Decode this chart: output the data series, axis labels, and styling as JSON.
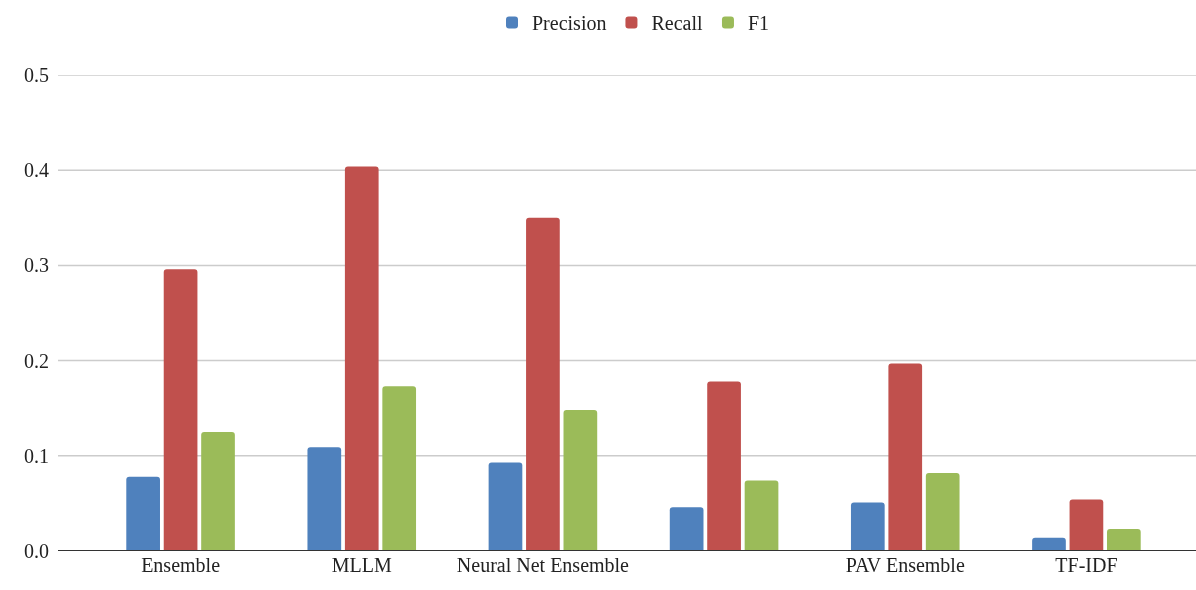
{
  "chart_data": {
    "type": "bar",
    "categories": [
      "Ensemble",
      "MLLM",
      "Neural Net Ensemble",
      null,
      "PAV Ensemble",
      "TF-IDF"
    ],
    "series": [
      {
        "name": "Precision",
        "color": "#4f81bd",
        "values": [
          0.078,
          0.109,
          0.093,
          0.046,
          0.051,
          0.014
        ]
      },
      {
        "name": "Recall",
        "color": "#c0504d",
        "values": [
          0.296,
          0.404,
          0.35,
          0.178,
          0.197,
          0.054
        ]
      },
      {
        "name": "F1",
        "color": "#9bbb59",
        "values": [
          0.125,
          0.173,
          0.148,
          0.074,
          0.082,
          0.023
        ]
      }
    ],
    "ylim": [
      0,
      0.5
    ],
    "yticks": [
      {
        "value": 0,
        "label": "0.0"
      },
      0.1,
      0.2,
      0.3,
      0.4,
      0.5
    ],
    "grid": "y",
    "legend": "top"
  }
}
